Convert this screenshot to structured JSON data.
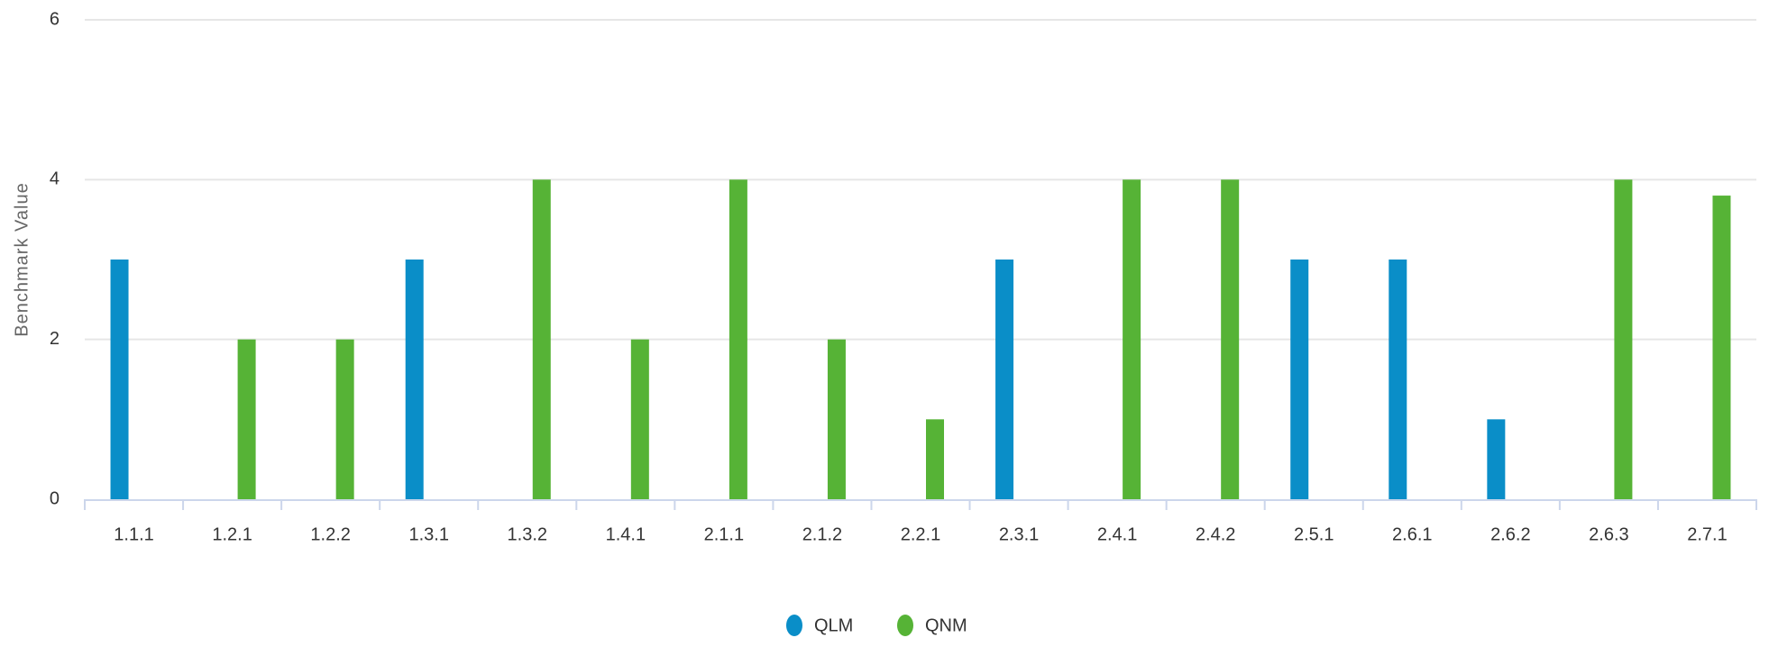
{
  "chart_data": {
    "type": "bar",
    "y_label": "Benchmark Value",
    "categories": [
      "1.1.1",
      "1.2.1",
      "1.2.2",
      "1.3.1",
      "1.3.2",
      "1.4.1",
      "2.1.1",
      "2.1.2",
      "2.2.1",
      "2.3.1",
      "2.4.1",
      "2.4.2",
      "2.5.1",
      "2.6.1",
      "2.6.2",
      "2.6.3",
      "2.7.1"
    ],
    "series": [
      {
        "name": "QLM",
        "color": "#0a8ec8",
        "values": [
          3,
          null,
          null,
          3,
          null,
          null,
          null,
          null,
          null,
          3,
          null,
          null,
          3,
          3,
          1,
          null,
          null
        ]
      },
      {
        "name": "QNM",
        "color": "#56b336",
        "values": [
          null,
          2,
          2,
          null,
          4,
          2,
          4,
          2,
          1,
          null,
          4,
          4,
          null,
          null,
          null,
          4,
          3.8
        ]
      }
    ],
    "ylim": [
      0,
      6
    ],
    "yticks": [
      0,
      2,
      4,
      6
    ],
    "grid": true,
    "legend": "bottom"
  }
}
